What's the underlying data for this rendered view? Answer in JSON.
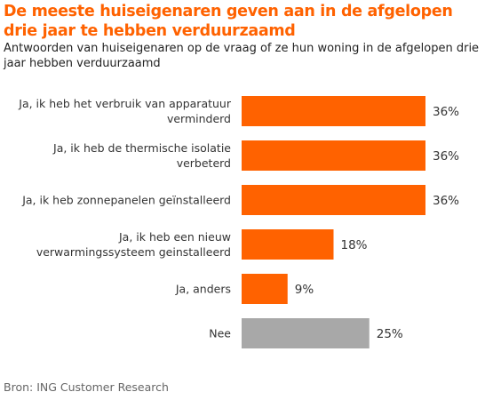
{
  "title": "De meeste huiseigenaren geven aan in de afgelopen drie jaar te hebben verduurzaamd",
  "subtitle": "Antwoorden van huiseigenaren op de vraag of ze hun woning in de afgelopen drie jaar hebben verduurzaamd",
  "source": "Bron: ING Customer Research",
  "colors": {
    "accent": "#ff6200",
    "neutral": "#a8a8a8"
  },
  "chart_data": {
    "type": "bar",
    "orientation": "horizontal",
    "categories": [
      [
        "Ja, ik heb het verbruik van apparatuur",
        "verminderd"
      ],
      [
        "Ja, ik heb de thermische isolatie",
        "verbeterd"
      ],
      [
        "Ja, ik heb zonnepanelen geïnstalleerd"
      ],
      [
        "Ja, ik heb een nieuw",
        "verwarmingssysteem geinstalleerd"
      ],
      [
        "Ja, anders"
      ],
      [
        "Nee"
      ]
    ],
    "values": [
      36,
      36,
      36,
      18,
      9,
      25
    ],
    "value_labels": [
      "36%",
      "36%",
      "36%",
      "18%",
      "9%",
      "25%"
    ],
    "bar_colors": [
      "#ff6200",
      "#ff6200",
      "#ff6200",
      "#ff6200",
      "#ff6200",
      "#a8a8a8"
    ],
    "unit": "%",
    "xlim": [
      0,
      36
    ],
    "grid": false
  }
}
